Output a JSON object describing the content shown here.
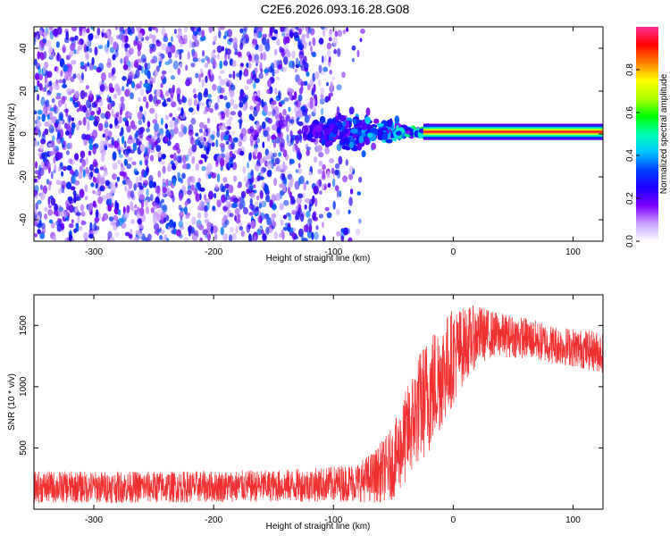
{
  "title": "C2E6.2026.093.16.28.G08",
  "chart_data": [
    {
      "type": "heatmap",
      "title": "C2E6.2026.093.16.28.G08",
      "xlabel": "Height of straight line (km)",
      "ylabel": "Frequency (Hz)",
      "xlim": [
        -350,
        125
      ],
      "ylim": [
        -50,
        50
      ],
      "xticks": [
        -300,
        -200,
        -100,
        0,
        100
      ],
      "xtick_labels": [
        "-300",
        "-200",
        "-100",
        "0",
        "100"
      ],
      "yticks": [
        -40,
        -20,
        0,
        20,
        40
      ],
      "ytick_labels": [
        "-40",
        "-20",
        "0",
        "20",
        "40"
      ],
      "noise_region_x": [
        -350,
        -85
      ],
      "transition_region_x": [
        -125,
        -20
      ],
      "carrier_start_x": -25,
      "carrier_frequency_hz": 1,
      "colorbar": {
        "label": "Normalized spectral amplitude",
        "range": [
          0,
          1
        ],
        "ticks": [
          0.0,
          0.2,
          0.4,
          0.6,
          0.8
        ],
        "tick_labels": [
          "0.0",
          "0.2",
          "0.4",
          "0.6",
          "0.8"
        ],
        "colormap": [
          "#ffffff",
          "#c8a0ff",
          "#7a00ff",
          "#1a00ff",
          "#0040ff",
          "#00c8ff",
          "#00ffb0",
          "#00ff00",
          "#b0ff00",
          "#ffff00",
          "#ff8000",
          "#ff0000",
          "#ff3399"
        ]
      }
    },
    {
      "type": "line",
      "xlabel": "Height of straight line (km)",
      "ylabel": "SNR (10 * v/v)",
      "xlim": [
        -350,
        125
      ],
      "ylim": [
        0,
        1750
      ],
      "xticks": [
        -300,
        -200,
        -100,
        0,
        100
      ],
      "xtick_labels": [
        "-300",
        "-200",
        "-100",
        "0",
        "100"
      ],
      "yticks": [
        500,
        1000,
        1500
      ],
      "ytick_labels": [
        "500",
        "1000",
        "1500"
      ],
      "color": "#f03030",
      "series": [
        {
          "name": "SNR",
          "x": [
            -350,
            -300,
            -250,
            -200,
            -150,
            -110,
            -80,
            -65,
            -50,
            -40,
            -30,
            -20,
            -10,
            0,
            10,
            20,
            30,
            40,
            60,
            80,
            100,
            125
          ],
          "mean": [
            180,
            180,
            180,
            185,
            190,
            200,
            220,
            270,
            380,
            580,
            800,
            950,
            1100,
            1250,
            1350,
            1420,
            1430,
            1420,
            1400,
            1350,
            1320,
            1280
          ],
          "spread": [
            130,
            130,
            130,
            130,
            130,
            140,
            160,
            220,
            300,
            380,
            450,
            500,
            450,
            400,
            300,
            250,
            200,
            180,
            170,
            160,
            160,
            170
          ]
        }
      ]
    }
  ]
}
